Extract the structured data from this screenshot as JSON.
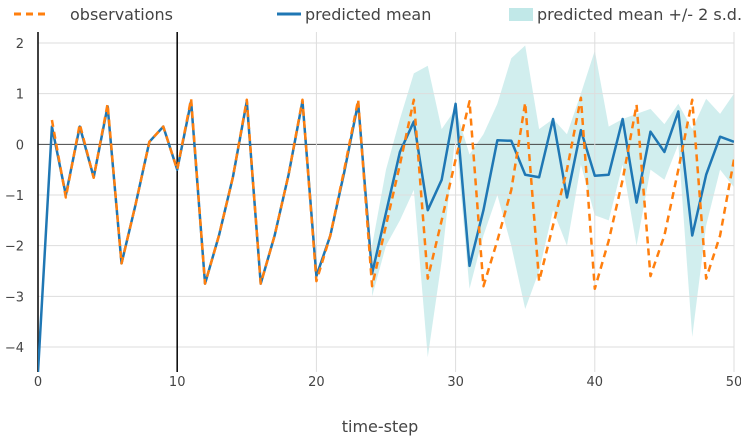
{
  "chart_data": {
    "type": "line",
    "xlabel": "time-step",
    "ylabel": "",
    "xlim": [
      0,
      50
    ],
    "ylim": [
      -4.5,
      2.2
    ],
    "x_ticks": [
      0,
      10,
      20,
      30,
      40,
      50
    ],
    "y_ticks": [
      -4,
      -3,
      -2,
      -1,
      0,
      1,
      2
    ],
    "x_tick_labels": [
      "0",
      "10",
      "20",
      "30",
      "40",
      "50"
    ],
    "y_tick_labels": [
      "−4",
      "−3",
      "−2",
      "−1",
      "0",
      "1",
      "2"
    ],
    "grid": true,
    "legend_position": "top",
    "vlines": [
      0,
      10
    ],
    "legend": [
      {
        "label": "observations",
        "style": "dashed",
        "color": "#ff7f0e"
      },
      {
        "label": "predicted mean",
        "style": "solid",
        "color": "#1f77b4"
      },
      {
        "label": "predicted mean +/- 2 s.d.",
        "style": "fill",
        "color": "#b2e2e2"
      }
    ],
    "x": [
      0,
      1,
      2,
      3,
      4,
      5,
      6,
      7,
      8,
      9,
      10,
      11,
      12,
      13,
      14,
      15,
      16,
      17,
      18,
      19,
      20,
      21,
      22,
      23,
      24,
      25,
      26,
      27,
      28,
      29,
      30,
      31,
      32,
      33,
      34,
      35,
      36,
      37,
      38,
      39,
      40,
      41,
      42,
      43,
      44,
      45,
      46,
      47,
      48,
      49,
      50
    ],
    "series": [
      {
        "name": "observations",
        "color": "#ff7f0e",
        "dash": true,
        "values": [
          null,
          0.48,
          -1.05,
          0.4,
          -0.66,
          0.8,
          -2.35,
          -1.2,
          0.05,
          0.35,
          -0.5,
          0.9,
          -2.75,
          -1.8,
          -0.65,
          0.88,
          -2.75,
          -1.8,
          -0.6,
          0.88,
          -2.7,
          -1.8,
          -0.5,
          0.88,
          -2.8,
          -1.6,
          -0.4,
          0.88,
          -2.65,
          -1.5,
          -0.3,
          0.85,
          -2.8,
          -1.9,
          -0.9,
          0.82,
          -2.7,
          -1.6,
          -0.5,
          0.92,
          -2.85,
          -1.9,
          -0.7,
          0.78,
          -2.6,
          -1.8,
          -0.5,
          0.88,
          -2.65,
          -1.8,
          -0.3
        ]
      },
      {
        "name": "predicted mean",
        "color": "#1f77b4",
        "dash": false,
        "values": [
          -4.5,
          0.35,
          -1.0,
          0.35,
          -0.65,
          0.75,
          -2.35,
          -1.2,
          0.05,
          0.35,
          -0.5,
          0.85,
          -2.75,
          -1.8,
          -0.65,
          0.85,
          -2.75,
          -1.8,
          -0.6,
          0.85,
          -2.6,
          -1.8,
          -0.55,
          0.82,
          -2.55,
          -1.35,
          -0.15,
          0.45,
          -1.3,
          -0.7,
          0.8,
          -2.4,
          -1.3,
          0.08,
          0.07,
          -0.6,
          -0.65,
          0.5,
          -1.05,
          0.28,
          -0.62,
          -0.6,
          0.5,
          -1.15,
          0.25,
          -0.15,
          0.65,
          -1.8,
          -0.6,
          0.15,
          0.05
        ]
      }
    ],
    "band": {
      "name": "predicted mean +/- 2 s.d.",
      "color": "#b2e2e2",
      "x": [
        24,
        25,
        26,
        27,
        28,
        29,
        30,
        31,
        32,
        33,
        34,
        35,
        36,
        37,
        38,
        39,
        40,
        41,
        42,
        43,
        44,
        45,
        46,
        47,
        48,
        49,
        50
      ],
      "upper": [
        -2.0,
        -0.5,
        0.5,
        1.4,
        1.55,
        0.3,
        0.7,
        -0.2,
        0.2,
        0.8,
        1.7,
        1.95,
        0.3,
        0.5,
        0.2,
        1.0,
        1.85,
        0.35,
        0.5,
        0.6,
        0.7,
        0.4,
        0.8,
        0.3,
        0.9,
        0.6,
        1.0
      ],
      "lower": [
        -3.0,
        -2.0,
        -1.5,
        -0.9,
        -4.2,
        -2.3,
        0.2,
        -2.85,
        -1.8,
        -1.0,
        -2.0,
        -3.25,
        -2.5,
        -1.3,
        -2.0,
        -0.4,
        -1.4,
        -1.5,
        -0.4,
        -2.0,
        -0.5,
        -0.7,
        0.0,
        -3.8,
        -1.6,
        -0.5,
        -0.85
      ]
    }
  }
}
